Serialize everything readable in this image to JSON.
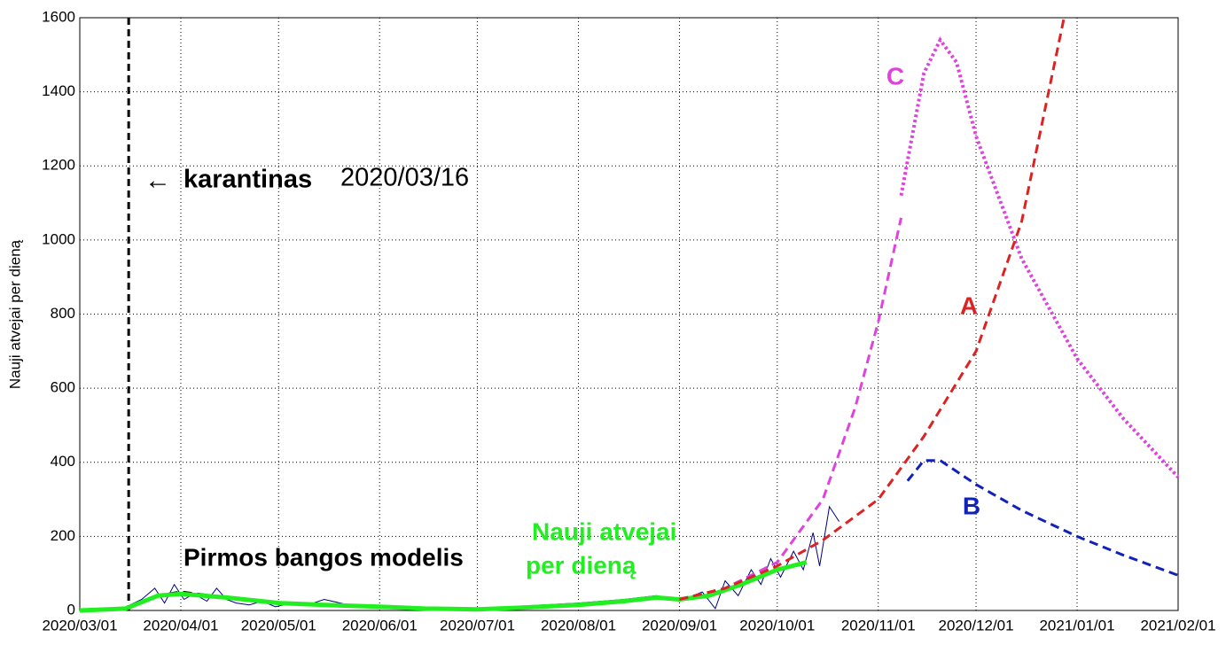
{
  "chart_data": {
    "type": "line",
    "ylabel": "Nauji atvejai per dieną",
    "xlim": [
      "2020/03/01",
      "2021/02/01"
    ],
    "xticks": [
      "2020/03/01",
      "2020/04/01",
      "2020/05/01",
      "2020/06/01",
      "2020/07/01",
      "2020/08/01",
      "2020/09/01",
      "2020/10/01",
      "2020/11/01",
      "2020/12/01",
      "2021/01/01",
      "2021/02/01"
    ],
    "ylim": [
      0,
      1600
    ],
    "yticks": [
      0,
      200,
      400,
      600,
      800,
      1000,
      1200,
      1400,
      1600
    ],
    "grid": true,
    "quarantine": {
      "x": "2020/03/16",
      "label": "karantinas",
      "arrow": "←"
    },
    "annotations": [
      "Pirmos bangos modelis",
      "Nauji atvejai",
      "per dieną"
    ],
    "series": [
      {
        "color": "#00007f",
        "style": "thin",
        "x": [
          "2020/03/01",
          "2020/03/14",
          "2020/03/20",
          "2020/03/24",
          "2020/03/27",
          "2020/03/30",
          "2020/04/02",
          "2020/04/05",
          "2020/04/09",
          "2020/04/12",
          "2020/04/15",
          "2020/04/18",
          "2020/04/22",
          "2020/04/26",
          "2020/04/30",
          "2020/05/05",
          "2020/05/10",
          "2020/05/15",
          "2020/05/25",
          "2020/06/05",
          "2020/06/15",
          "2020/07/01",
          "2020/07/15",
          "2020/08/01",
          "2020/08/15",
          "2020/08/25",
          "2020/09/01",
          "2020/09/08",
          "2020/09/12",
          "2020/09/15",
          "2020/09/19",
          "2020/09/23",
          "2020/09/26",
          "2020/09/29",
          "2020/10/02",
          "2020/10/06",
          "2020/10/09",
          "2020/10/12",
          "2020/10/14",
          "2020/10/17",
          "2020/10/20"
        ],
        "values": [
          0,
          5,
          30,
          60,
          20,
          70,
          30,
          45,
          25,
          60,
          30,
          20,
          15,
          25,
          10,
          20,
          15,
          30,
          10,
          12,
          5,
          4,
          12,
          20,
          30,
          40,
          25,
          50,
          5,
          80,
          40,
          110,
          70,
          140,
          90,
          160,
          110,
          210,
          120,
          280,
          240
        ]
      },
      {
        "name": "Pirmos bangos modelis",
        "color": "#000000",
        "style": "dash",
        "x": [
          "2020/03/16",
          "2020/03/25",
          "2020/04/01",
          "2020/04/15",
          "2020/05/01",
          "2020/05/15",
          "2020/06/01",
          "2020/06/15",
          "2020/07/01"
        ],
        "values": [
          10,
          40,
          50,
          35,
          20,
          15,
          10,
          6,
          3
        ]
      },
      {
        "name": "Nauji atvejai per dieną",
        "color": "#22ee22",
        "style": "thick",
        "x": [
          "2020/03/01",
          "2020/03/15",
          "2020/03/25",
          "2020/04/01",
          "2020/04/15",
          "2020/05/01",
          "2020/05/15",
          "2020/06/01",
          "2020/06/15",
          "2020/07/01",
          "2020/07/15",
          "2020/08/01",
          "2020/08/15",
          "2020/08/25",
          "2020/09/01",
          "2020/09/10",
          "2020/09/20",
          "2020/10/01",
          "2020/10/10"
        ],
        "values": [
          0,
          5,
          40,
          45,
          35,
          20,
          15,
          10,
          5,
          3,
          8,
          15,
          25,
          35,
          30,
          40,
          70,
          110,
          130
        ]
      },
      {
        "color": "#dd44dd",
        "style": "dash",
        "x": [
          "2020/09/01",
          "2020/09/15",
          "2020/10/01",
          "2020/10/15",
          "2020/10/25",
          "2020/11/01",
          "2020/11/08"
        ],
        "values": [
          30,
          60,
          130,
          300,
          550,
          780,
          1060
        ]
      },
      {
        "name": "C",
        "color": "#dd44dd",
        "style": "dot",
        "x": [
          "2020/11/08",
          "2020/11/15",
          "2020/11/20",
          "2020/11/25",
          "2020/12/01",
          "2020/12/15",
          "2021/01/01",
          "2021/01/15",
          "2021/02/01"
        ],
        "values": [
          1120,
          1450,
          1540,
          1480,
          1280,
          950,
          680,
          520,
          360
        ]
      },
      {
        "name": "A",
        "color": "#dd2222",
        "style": "dash",
        "x": [
          "2020/09/01",
          "2020/09/15",
          "2020/10/01",
          "2020/10/15",
          "2020/11/01",
          "2020/11/15",
          "2020/12/01",
          "2020/12/15",
          "2020/12/28"
        ],
        "values": [
          30,
          60,
          120,
          190,
          300,
          470,
          700,
          1050,
          1600
        ]
      },
      {
        "name": "B",
        "color": "#1122bb",
        "style": "dash",
        "x": [
          "2020/11/10",
          "2020/11/15",
          "2020/11/20",
          "2020/12/01",
          "2020/12/15",
          "2021/01/01",
          "2021/01/15",
          "2021/02/01"
        ],
        "values": [
          350,
          405,
          405,
          340,
          270,
          200,
          150,
          95
        ]
      }
    ]
  }
}
